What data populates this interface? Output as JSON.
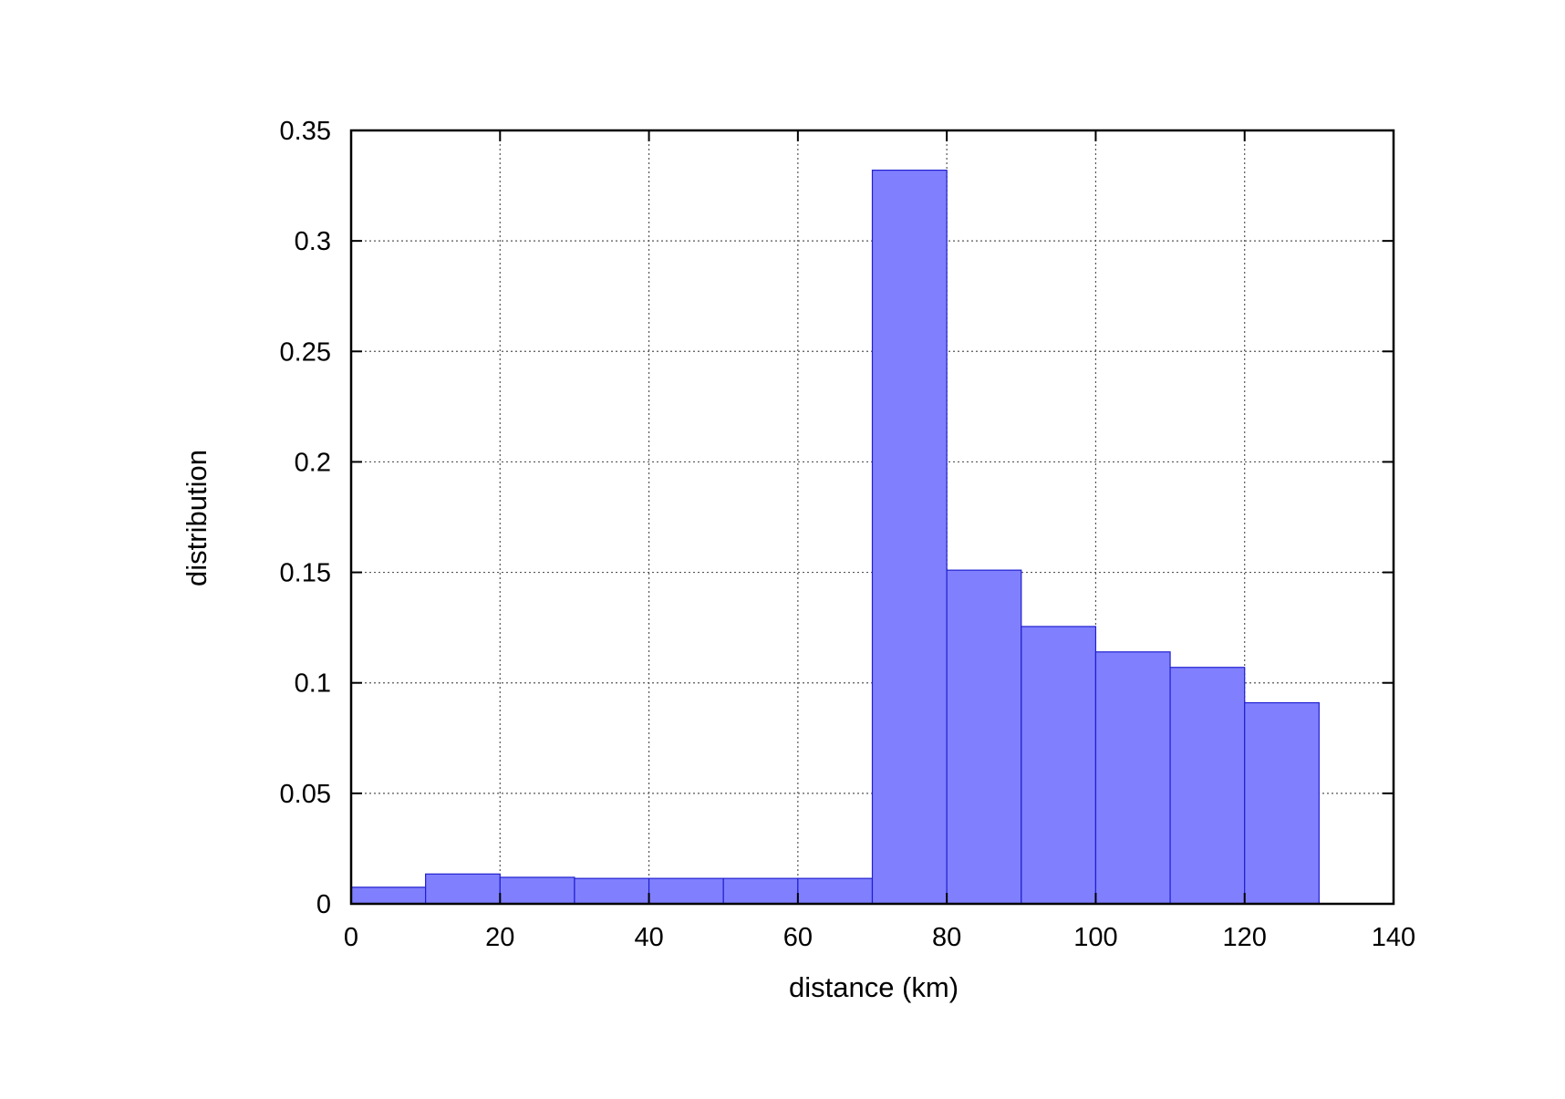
{
  "chart_data": {
    "type": "bar",
    "title": "",
    "xlabel": "distance (km)",
    "ylabel": "distribution",
    "xlim": [
      0,
      140
    ],
    "ylim": [
      0,
      0.35
    ],
    "x_ticks": [
      "0",
      "20",
      "40",
      "60",
      "80",
      "100",
      "120",
      "140"
    ],
    "y_ticks": [
      "0",
      "0.05",
      "0.1",
      "0.15",
      "0.2",
      "0.25",
      "0.3",
      "0.35"
    ],
    "grid": true,
    "legend": "none",
    "bin_width": 10,
    "bins": [
      {
        "start": 0,
        "end": 10,
        "value": 0.0075
      },
      {
        "start": 10,
        "end": 20,
        "value": 0.0135
      },
      {
        "start": 20,
        "end": 30,
        "value": 0.012
      },
      {
        "start": 30,
        "end": 40,
        "value": 0.0115
      },
      {
        "start": 40,
        "end": 50,
        "value": 0.0115
      },
      {
        "start": 50,
        "end": 60,
        "value": 0.0115
      },
      {
        "start": 60,
        "end": 70,
        "value": 0.0115
      },
      {
        "start": 70,
        "end": 80,
        "value": 0.332
      },
      {
        "start": 80,
        "end": 90,
        "value": 0.151
      },
      {
        "start": 90,
        "end": 100,
        "value": 0.1255
      },
      {
        "start": 100,
        "end": 110,
        "value": 0.114
      },
      {
        "start": 110,
        "end": 120,
        "value": 0.107
      },
      {
        "start": 120,
        "end": 130,
        "value": 0.091
      }
    ],
    "colors": {
      "bar_fill": "#8080ff",
      "bar_stroke": "#2020d0",
      "axis": "#000000",
      "grid": "#555555"
    }
  }
}
